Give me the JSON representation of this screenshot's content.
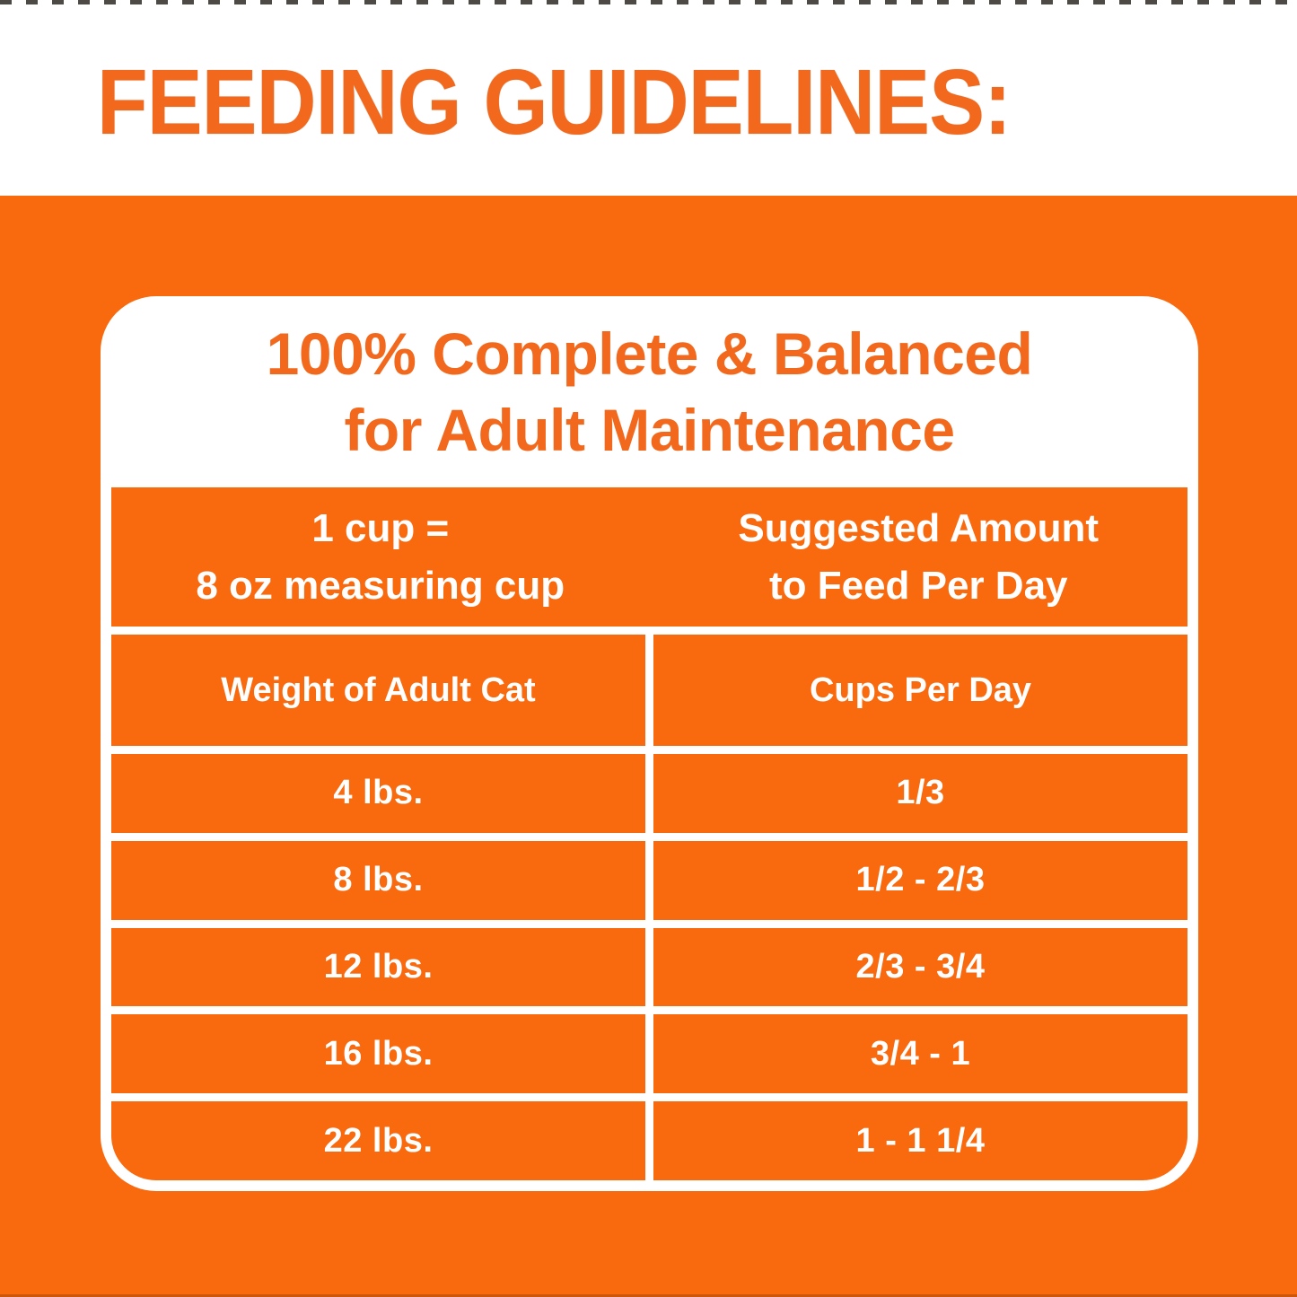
{
  "page": {
    "title": "FEEDING GUIDELINES:"
  },
  "card": {
    "heading_line1": "100% Complete & Balanced",
    "heading_line2": "for Adult Maintenance",
    "cup_note_line1": "1 cup =",
    "cup_note_line2": "8 oz measuring cup",
    "amount_note_line1": "Suggested Amount",
    "amount_note_line2": "to Feed Per Day",
    "columns": {
      "weight": "Weight of Adult Cat",
      "cups": "Cups Per Day"
    },
    "rows": [
      {
        "weight": "4 lbs.",
        "cups": "1/3"
      },
      {
        "weight": "8 lbs.",
        "cups": "1/2 - 2/3"
      },
      {
        "weight": "12 lbs.",
        "cups": "2/3 - 3/4"
      },
      {
        "weight": "16 lbs.",
        "cups": "3/4 - 1"
      },
      {
        "weight": "22 lbs.",
        "cups": "1 - 1 1/4"
      }
    ]
  },
  "colors": {
    "orange": "#F9690E",
    "title_orange": "#F2691D",
    "divider_white": "#FFFFFF"
  }
}
